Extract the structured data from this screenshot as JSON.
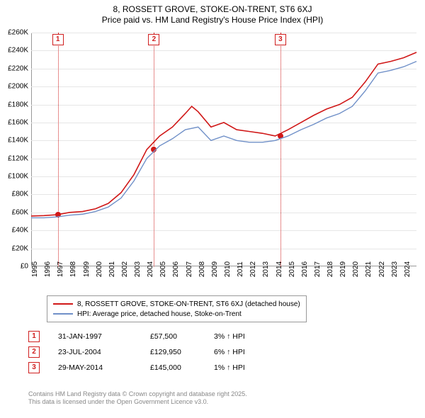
{
  "title": {
    "line1": "8, ROSSETT GROVE, STOKE-ON-TRENT, ST6 6XJ",
    "line2": "Price paid vs. HM Land Registry's House Price Index (HPI)"
  },
  "chart": {
    "type": "line",
    "background_color": "#ffffff",
    "grid_color": "#e6e6e6",
    "axis_color": "#999999",
    "x_min": 1995,
    "x_max": 2025,
    "y_min": 0,
    "y_max": 260000,
    "y_ticks": [
      0,
      20000,
      40000,
      60000,
      80000,
      100000,
      120000,
      140000,
      160000,
      180000,
      200000,
      220000,
      240000,
      260000
    ],
    "y_tick_labels": [
      "£0",
      "£20K",
      "£40K",
      "£60K",
      "£80K",
      "£100K",
      "£120K",
      "£140K",
      "£160K",
      "£180K",
      "£200K",
      "£220K",
      "£240K",
      "£260K"
    ],
    "x_ticks": [
      1995,
      1996,
      1997,
      1998,
      1999,
      2000,
      2001,
      2002,
      2003,
      2004,
      2005,
      2006,
      2007,
      2008,
      2009,
      2010,
      2011,
      2012,
      2013,
      2014,
      2015,
      2016,
      2017,
      2018,
      2019,
      2020,
      2021,
      2022,
      2023,
      2024
    ],
    "series": [
      {
        "name": "price_paid",
        "label": "8, ROSSETT GROVE, STOKE-ON-TRENT, ST6 6XJ (detached house)",
        "color": "#d01818",
        "line_width": 1.6,
        "data": [
          [
            1995,
            56000
          ],
          [
            1996,
            56500
          ],
          [
            1997,
            57500
          ],
          [
            1998,
            60000
          ],
          [
            1999,
            61000
          ],
          [
            2000,
            64000
          ],
          [
            2001,
            70000
          ],
          [
            2002,
            82000
          ],
          [
            2003,
            102000
          ],
          [
            2004,
            129950
          ],
          [
            2005,
            145000
          ],
          [
            2006,
            155000
          ],
          [
            2007,
            170000
          ],
          [
            2007.5,
            178000
          ],
          [
            2008,
            172000
          ],
          [
            2009,
            155000
          ],
          [
            2010,
            160000
          ],
          [
            2011,
            152000
          ],
          [
            2012,
            150000
          ],
          [
            2013,
            148000
          ],
          [
            2014,
            145000
          ],
          [
            2015,
            152000
          ],
          [
            2016,
            160000
          ],
          [
            2017,
            168000
          ],
          [
            2018,
            175000
          ],
          [
            2019,
            180000
          ],
          [
            2020,
            188000
          ],
          [
            2021,
            205000
          ],
          [
            2022,
            225000
          ],
          [
            2023,
            228000
          ],
          [
            2024,
            232000
          ],
          [
            2025,
            238000
          ]
        ]
      },
      {
        "name": "hpi",
        "label": "HPI: Average price, detached house, Stoke-on-Trent",
        "color": "#7090c8",
        "line_width": 1.4,
        "data": [
          [
            1995,
            54000
          ],
          [
            1996,
            54000
          ],
          [
            1997,
            55000
          ],
          [
            1998,
            57000
          ],
          [
            1999,
            58000
          ],
          [
            2000,
            61000
          ],
          [
            2001,
            66000
          ],
          [
            2002,
            76000
          ],
          [
            2003,
            95000
          ],
          [
            2004,
            120000
          ],
          [
            2005,
            134000
          ],
          [
            2006,
            142000
          ],
          [
            2007,
            152000
          ],
          [
            2008,
            155000
          ],
          [
            2009,
            140000
          ],
          [
            2010,
            145000
          ],
          [
            2011,
            140000
          ],
          [
            2012,
            138000
          ],
          [
            2013,
            138000
          ],
          [
            2014,
            140000
          ],
          [
            2015,
            145000
          ],
          [
            2016,
            152000
          ],
          [
            2017,
            158000
          ],
          [
            2018,
            165000
          ],
          [
            2019,
            170000
          ],
          [
            2020,
            178000
          ],
          [
            2021,
            195000
          ],
          [
            2022,
            215000
          ],
          [
            2023,
            218000
          ],
          [
            2024,
            222000
          ],
          [
            2025,
            228000
          ]
        ]
      }
    ],
    "markers": [
      {
        "num": "1",
        "x": 1997.08,
        "y": 57500,
        "line_color": "#d02020"
      },
      {
        "num": "2",
        "x": 2004.56,
        "y": 129950,
        "line_color": "#d02020"
      },
      {
        "num": "3",
        "x": 2014.41,
        "y": 145000,
        "line_color": "#d02020"
      }
    ],
    "point_color": "#d01818"
  },
  "legend": {
    "items": [
      {
        "color": "#d01818",
        "label": "8, ROSSETT GROVE, STOKE-ON-TRENT, ST6 6XJ (detached house)"
      },
      {
        "color": "#7090c8",
        "label": "HPI: Average price, detached house, Stoke-on-Trent"
      }
    ]
  },
  "sales": [
    {
      "num": "1",
      "date": "31-JAN-1997",
      "price": "£57,500",
      "hpi": "3% ↑ HPI"
    },
    {
      "num": "2",
      "date": "23-JUL-2004",
      "price": "£129,950",
      "hpi": "6% ↑ HPI"
    },
    {
      "num": "3",
      "date": "29-MAY-2014",
      "price": "£145,000",
      "hpi": "1% ↑ HPI"
    }
  ],
  "footer": {
    "line1": "Contains HM Land Registry data © Crown copyright and database right 2025.",
    "line2": "This data is licensed under the Open Government Licence v3.0."
  }
}
